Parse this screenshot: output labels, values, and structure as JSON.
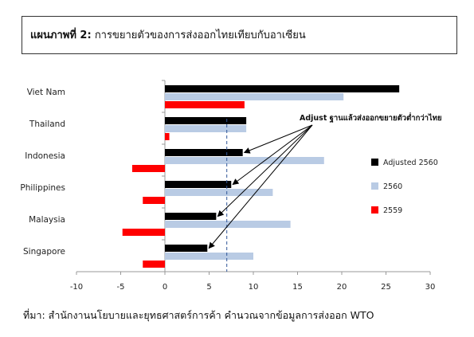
{
  "header": {
    "figure_label": "แผนภาพที่ 2:",
    "figure_title": "การขยายตัวของการส่งออกไทยเทียบกับอาเซียน"
  },
  "source_note": "ที่มา: สำนักงานนโยบายและยุทธศาสตร์การค้า คำนวณจากข้อมูลการส่งออก WTO",
  "chart_data": {
    "type": "bar",
    "orientation": "horizontal",
    "categories": [
      "Viet Nam",
      "Thailand",
      "Indonesia",
      "Philippines",
      "Malaysia",
      "Singapore"
    ],
    "series": [
      {
        "name": "Adjusted 2560",
        "color": "#000000",
        "values": [
          26.5,
          9.2,
          8.8,
          7.5,
          5.8,
          4.8
        ]
      },
      {
        "name": "2560",
        "color": "#b9cbe4",
        "values": [
          20.2,
          9.2,
          18.0,
          12.2,
          14.2,
          10.0
        ]
      },
      {
        "name": "2559",
        "color": "#ff0000",
        "values": [
          9.0,
          0.5,
          -3.7,
          -2.5,
          -4.8,
          -2.5
        ]
      }
    ],
    "xlim": [
      -10,
      30
    ],
    "xticks": [
      -10,
      -5,
      0,
      5,
      10,
      15,
      20,
      25,
      30
    ],
    "thailand_reference": 7,
    "annotation": "Adjust ฐานแล้วส่งออกขยายตัวต่ำกว่าไทย",
    "legend_position": "right",
    "grid": false
  }
}
